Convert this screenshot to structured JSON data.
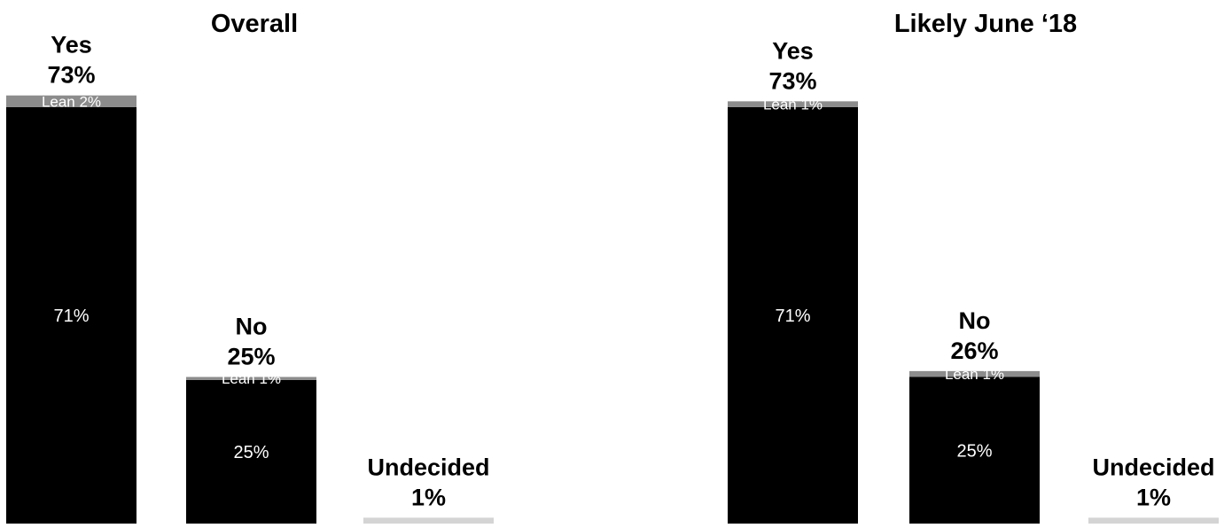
{
  "colors": {
    "firm": "#000000",
    "lean": "#8c8c8c",
    "undecided": "#d4d4d4",
    "background": "#ffffff"
  },
  "chart_data": [
    {
      "type": "bar",
      "stacked": true,
      "title": "Overall",
      "ylim": [
        0,
        80
      ],
      "grid": false,
      "bars": [
        {
          "category": "Yes",
          "total_label": "73%",
          "segments": [
            {
              "name": "firm",
              "value": 71,
              "label": "71%"
            },
            {
              "name": "lean",
              "value": 2,
              "label": "Lean 2%"
            }
          ]
        },
        {
          "category": "No",
          "total_label": "25%",
          "segments": [
            {
              "name": "firm",
              "value": 24.5,
              "label": "25%"
            },
            {
              "name": "lean",
              "value": 0.5,
              "label": "Lean 1%"
            }
          ]
        },
        {
          "category": "Undecided",
          "total_label": "1%",
          "segments": [
            {
              "name": "undecided",
              "value": 1,
              "label": ""
            }
          ]
        }
      ]
    },
    {
      "type": "bar",
      "stacked": true,
      "title": "Likely June ‘18",
      "ylim": [
        0,
        80
      ],
      "grid": false,
      "bars": [
        {
          "category": "Yes",
          "total_label": "73%",
          "segments": [
            {
              "name": "firm",
              "value": 71,
              "label": "71%"
            },
            {
              "name": "lean",
              "value": 1,
              "label": "Lean 1%"
            }
          ]
        },
        {
          "category": "No",
          "total_label": "26%",
          "segments": [
            {
              "name": "firm",
              "value": 25,
              "label": "25%"
            },
            {
              "name": "lean",
              "value": 1,
              "label": "Lean 1%"
            }
          ]
        },
        {
          "category": "Undecided",
          "total_label": "1%",
          "segments": [
            {
              "name": "undecided",
              "value": 1,
              "label": ""
            }
          ]
        }
      ]
    }
  ]
}
